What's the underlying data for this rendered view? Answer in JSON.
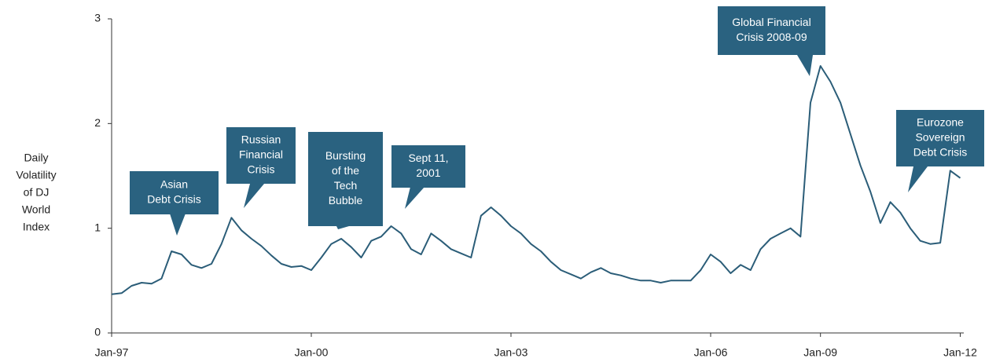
{
  "chart_data": {
    "type": "line",
    "y_label": [
      "Daily",
      "Volatility",
      "of DJ",
      "World",
      "Index"
    ],
    "x": [
      "Jan-97",
      null,
      null,
      null,
      null,
      null,
      null,
      null,
      null,
      null,
      null,
      null,
      null,
      null,
      null,
      null,
      null,
      null,
      null,
      null,
      "Jan-00",
      null,
      null,
      null,
      null,
      null,
      null,
      null,
      null,
      null,
      null,
      null,
      null,
      null,
      null,
      null,
      null,
      null,
      null,
      null,
      "Jan-03",
      null,
      null,
      null,
      null,
      null,
      null,
      null,
      null,
      null,
      null,
      null,
      null,
      null,
      null,
      null,
      null,
      null,
      null,
      null,
      "Jan-06",
      null,
      null,
      null,
      null,
      null,
      null,
      null,
      null,
      null,
      null,
      "Jan-09",
      null,
      null,
      null,
      null,
      null,
      null,
      null,
      null,
      null,
      null,
      null,
      null,
      null,
      "Jan-12"
    ],
    "series": [
      {
        "color": "#2b5d78",
        "values": [
          0.37,
          0.38,
          0.45,
          0.48,
          0.47,
          0.52,
          0.78,
          0.75,
          0.65,
          0.62,
          0.66,
          0.85,
          1.1,
          0.98,
          0.9,
          0.83,
          0.74,
          0.66,
          0.63,
          0.64,
          0.6,
          0.72,
          0.85,
          0.9,
          0.82,
          0.72,
          0.88,
          0.92,
          1.02,
          0.95,
          0.8,
          0.75,
          0.95,
          0.88,
          0.8,
          0.76,
          0.72,
          1.12,
          1.2,
          1.12,
          1.02,
          0.95,
          0.85,
          0.78,
          0.68,
          0.6,
          0.56,
          0.52,
          0.58,
          0.62,
          0.57,
          0.55,
          0.52,
          0.5,
          0.5,
          0.48,
          0.5,
          0.5,
          0.5,
          0.6,
          0.75,
          0.68,
          0.57,
          0.65,
          0.6,
          0.8,
          0.9,
          0.95,
          1.0,
          0.92,
          2.2,
          2.55,
          2.4,
          2.2,
          1.9,
          1.6,
          1.35,
          1.05,
          1.25,
          1.15,
          1.0,
          0.88,
          0.85,
          0.86,
          1.55,
          1.48
        ]
      }
    ],
    "ylim": [
      0,
      3
    ],
    "yticks": [
      0,
      1,
      2,
      3
    ],
    "annotations": [
      {
        "color": "#2a6280",
        "text": [
          "Asian",
          "Debt Crisis"
        ]
      },
      {
        "color": "#2a6280",
        "text": [
          "Russian",
          "Financial",
          "Crisis"
        ]
      },
      {
        "color": "#2a6280",
        "text": [
          "Bursting",
          "of the",
          "Tech",
          "Bubble"
        ]
      },
      {
        "color": "#2a6280",
        "text": [
          "Sept 11,",
          "2001"
        ]
      },
      {
        "color": "#2a6280",
        "text": [
          "Global Financial",
          "Crisis 2008-09"
        ]
      },
      {
        "color": "#2a6280",
        "text": [
          "Eurozone",
          "Sovereign",
          "Debt Crisis"
        ]
      }
    ]
  }
}
